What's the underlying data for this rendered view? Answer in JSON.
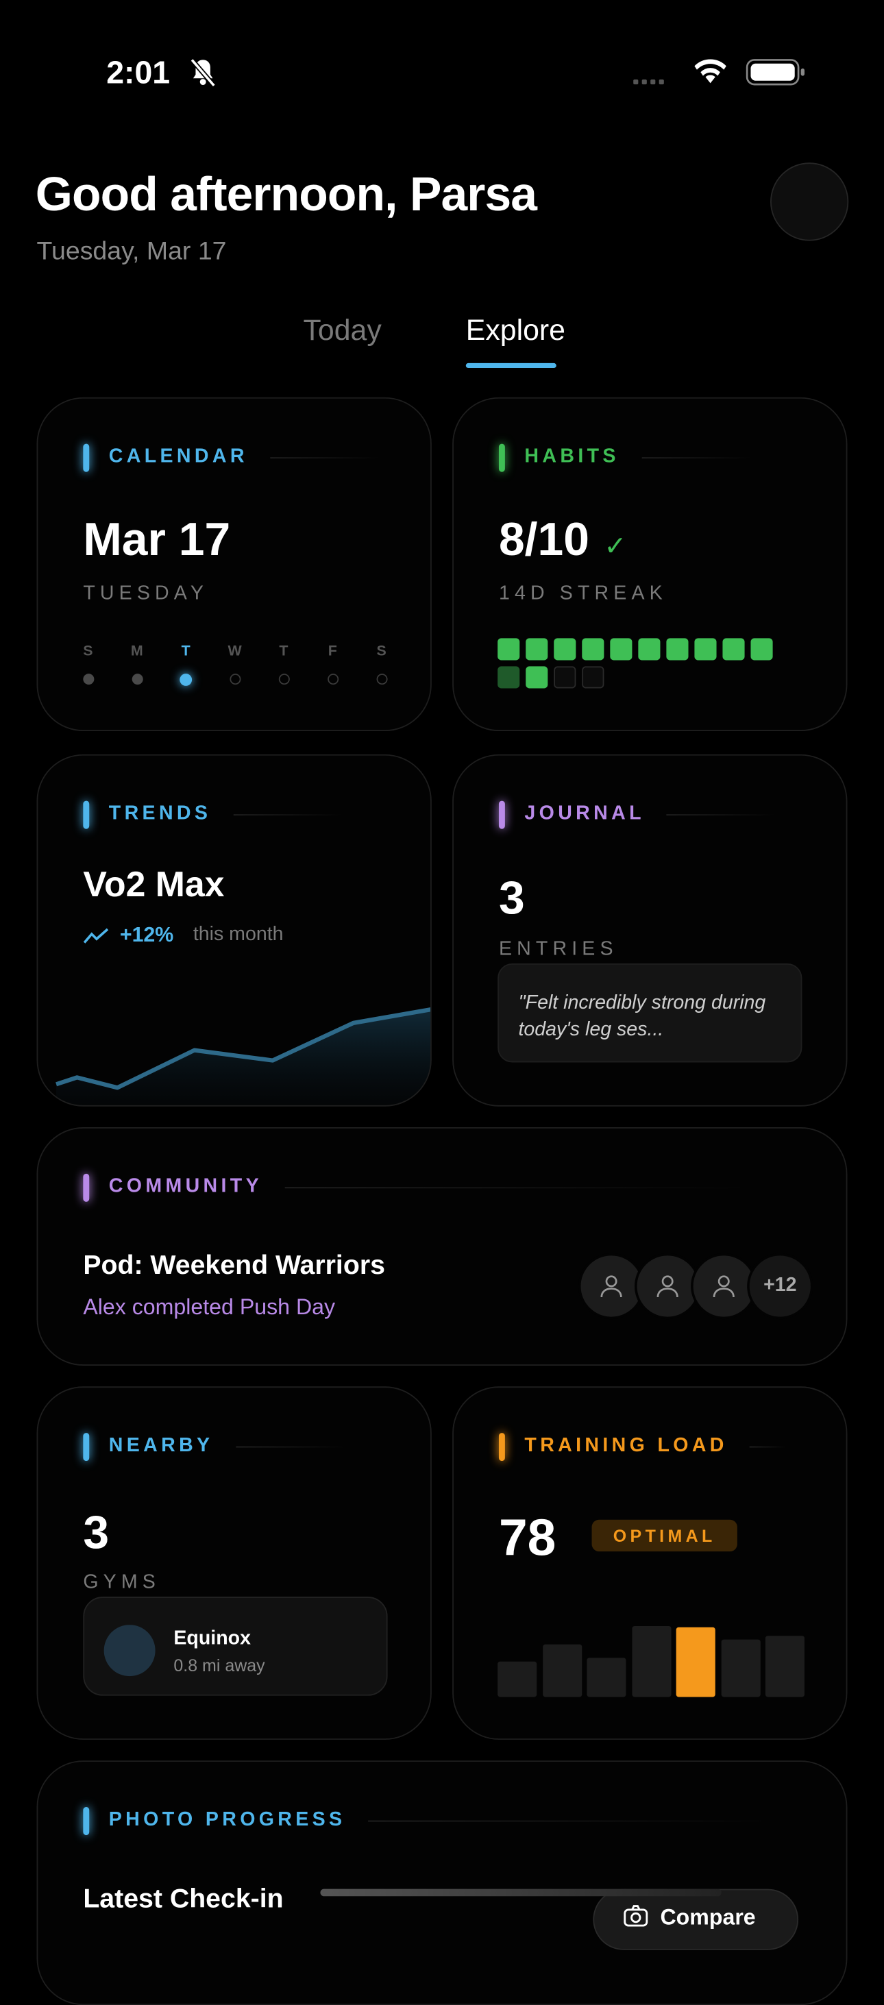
{
  "status_bar": {
    "time": "2:01",
    "silent_icon": "bell-slash-icon",
    "signal_icon": "signal-dots-icon",
    "wifi_icon": "wifi-icon",
    "battery_icon": "battery-icon"
  },
  "header": {
    "greeting": "Good afternoon, Parsa",
    "date": "Tuesday, Mar 17"
  },
  "tabs": [
    {
      "label": "Today",
      "active": false
    },
    {
      "label": "Explore",
      "active": true
    }
  ],
  "colors": {
    "blue": "#4fb6ec",
    "green": "#3fbf55",
    "purple": "#b98ae8",
    "orange": "#f5991c"
  },
  "calendar": {
    "label": "CALENDAR",
    "date": "Mar 17",
    "weekday": "TUESDAY",
    "days": [
      "S",
      "M",
      "T",
      "W",
      "T",
      "F",
      "S"
    ],
    "states": [
      "past",
      "past",
      "today",
      "future",
      "future",
      "future",
      "future"
    ]
  },
  "habits": {
    "label": "HABITS",
    "value": "8/10",
    "check": "✓",
    "streak": "14D STREAK",
    "grid": [
      "done",
      "done",
      "done",
      "done",
      "done",
      "done",
      "done",
      "done",
      "done",
      "done",
      "partial",
      "done",
      "empty",
      "empty"
    ]
  },
  "trends": {
    "label": "TRENDS",
    "metric": "Vo2 Max",
    "change": "+12%",
    "period": "this month",
    "series": [
      2,
      3,
      1.5,
      7,
      5.5,
      11,
      13
    ]
  },
  "journal": {
    "label": "JOURNAL",
    "count": "3",
    "unit": "ENTRIES",
    "quote": "\"Felt incredibly strong during today's leg ses..."
  },
  "community": {
    "label": "COMMUNITY",
    "pod": "Pod: Weekend Warriors",
    "activity": "Alex completed Push Day",
    "extra_members": "+12"
  },
  "nearby": {
    "label": "NEARBY",
    "count": "3",
    "unit": "GYMS",
    "gym_name": "Equinox",
    "gym_distance": "0.8 mi away"
  },
  "training_load": {
    "label": "TRAINING LOAD",
    "value": "78",
    "status": "OPTIMAL",
    "bars": [
      29,
      43,
      32,
      58,
      57,
      47,
      50
    ],
    "highlight_index": 4
  },
  "photo_progress": {
    "label": "PHOTO PROGRESS",
    "title": "Latest Check-in",
    "compare_label": "Compare"
  }
}
